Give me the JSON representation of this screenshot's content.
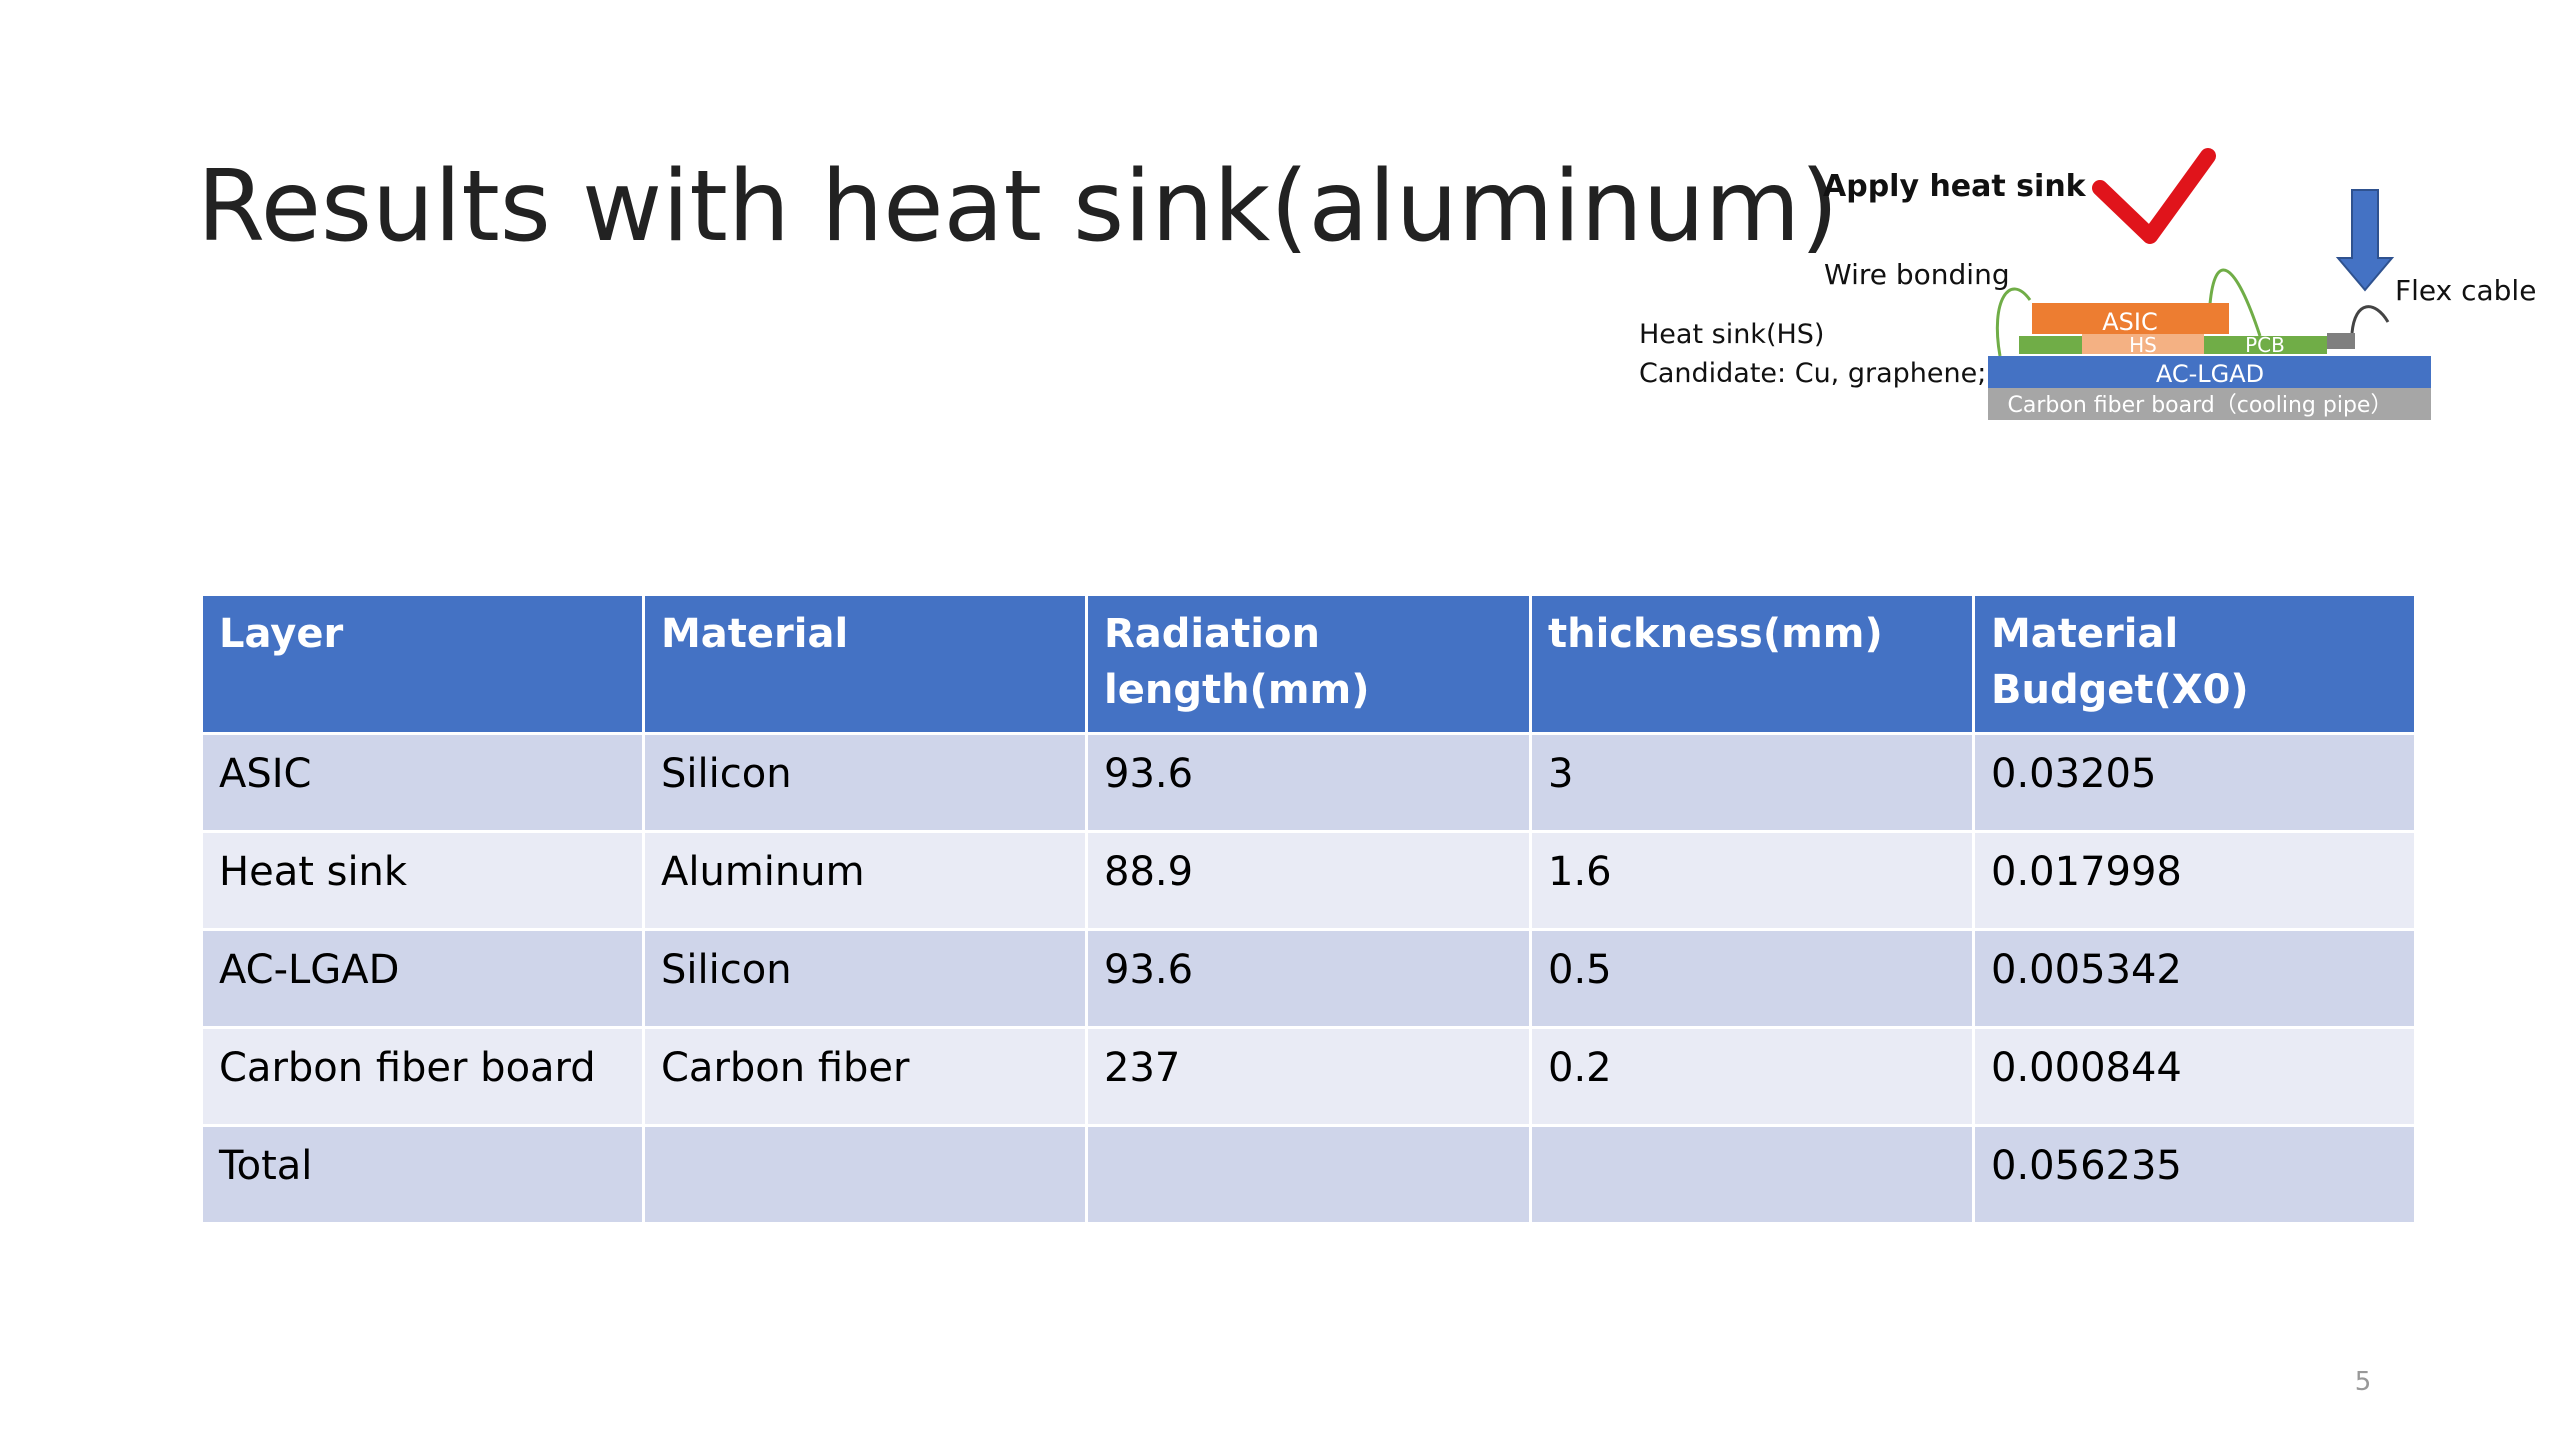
{
  "title": "Results with heat sink(aluminum)",
  "diagram": {
    "check_label": "Apply heat sink",
    "wire_label": "Wire bonding",
    "flex_label": "Flex cable",
    "hs_label": "Heat sink(HS)",
    "candidate_label": "Candidate: Cu, graphene;",
    "asic": "ASIC",
    "hs": "HS",
    "pcb": "PCB",
    "lgad": "AC-LGAD",
    "board": "Carbon fiber board（cooling pipe）"
  },
  "table": {
    "header": [
      "Layer",
      "Material",
      "Radiation length(mm)",
      "thickness(mm)",
      "Material Budget(X0)"
    ],
    "rows": [
      [
        "ASIC",
        "Silicon",
        "93.6",
        "3",
        "0.03205"
      ],
      [
        "Heat sink",
        "Aluminum",
        "88.9",
        "1.6",
        "0.017998"
      ],
      [
        "AC-LGAD",
        "Silicon",
        "93.6",
        "0.5",
        "0.005342"
      ],
      [
        "Carbon fiber board",
        "Carbon fiber",
        "237",
        "0.2",
        "0.000844"
      ],
      [
        "Total",
        null,
        null,
        null,
        "0.056235"
      ]
    ]
  },
  "page_number": "5"
}
